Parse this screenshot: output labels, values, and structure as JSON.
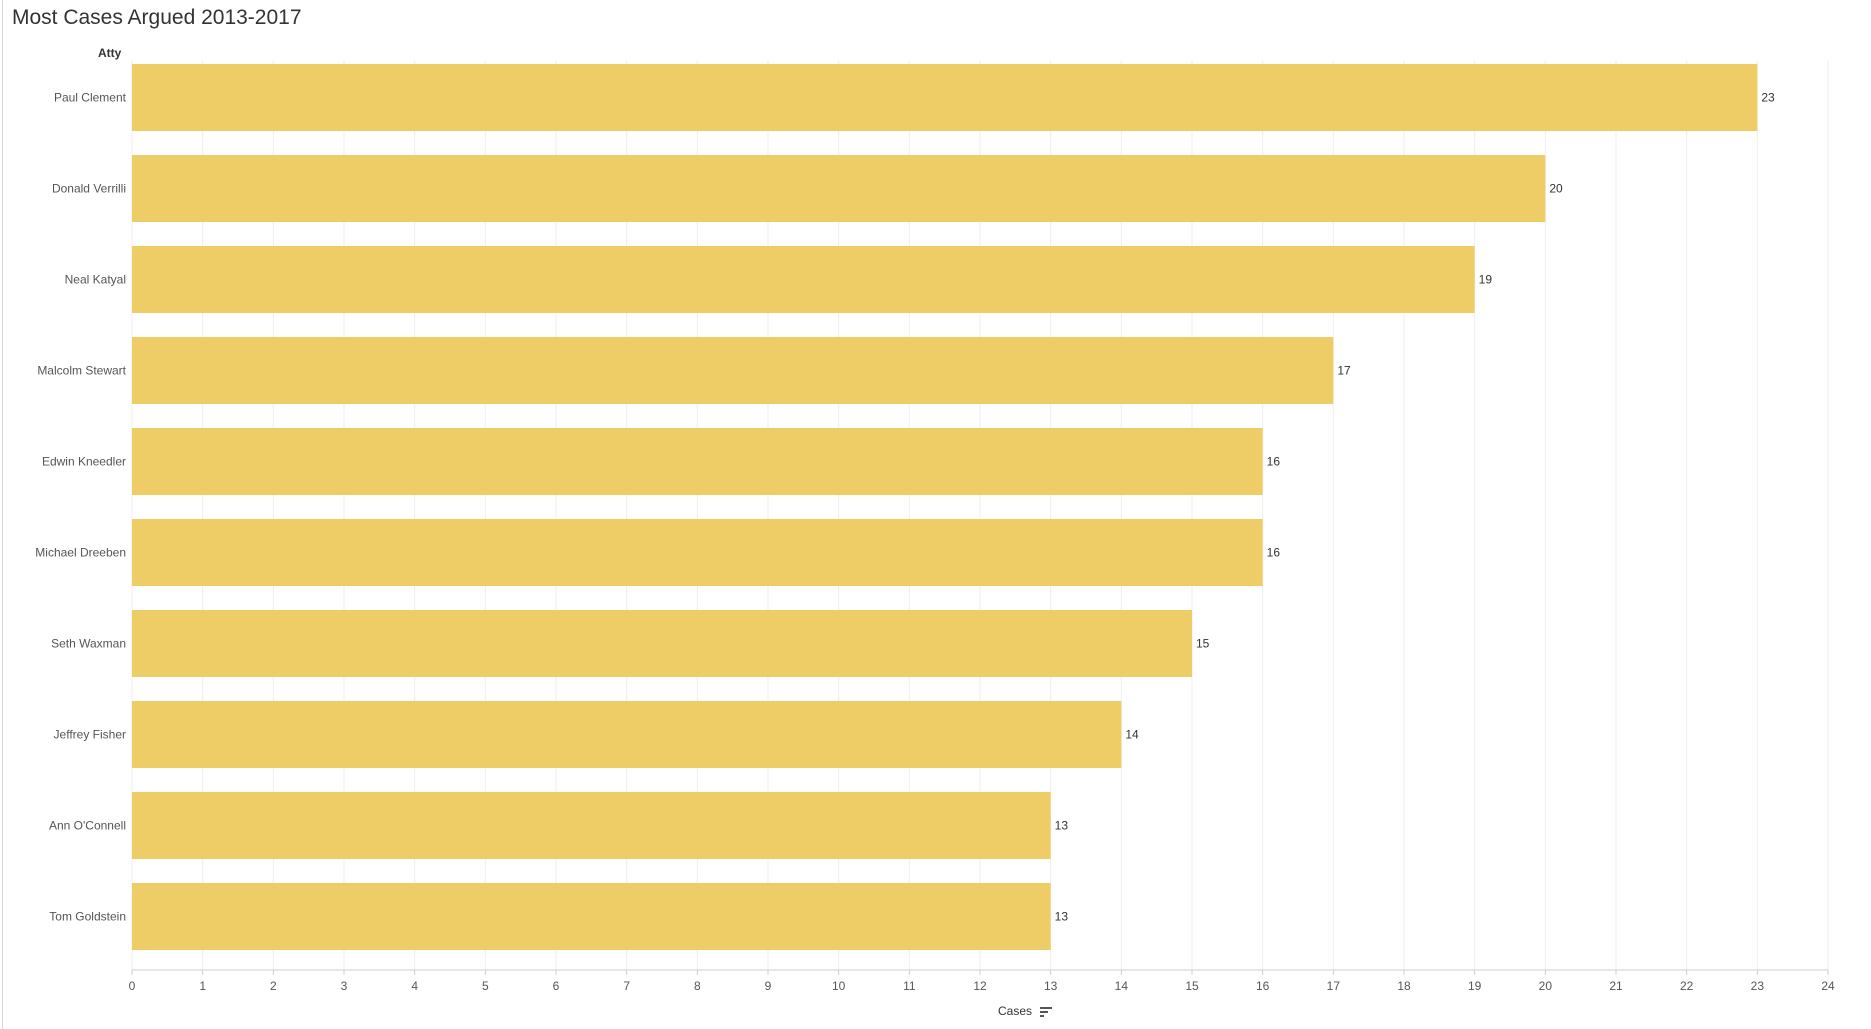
{
  "chart_data": {
    "type": "bar",
    "orientation": "horizontal",
    "title": "Most Cases Argued 2013-2017",
    "ylabel": "Atty",
    "xlabel": "Cases",
    "categories": [
      "Paul Clement",
      "Donald Verrilli",
      "Neal Katyal",
      "Malcolm Stewart",
      "Edwin Kneedler",
      "Michael Dreeben",
      "Seth Waxman",
      "Jeffrey Fisher",
      "Ann O'Connell",
      "Tom Goldstein"
    ],
    "values": [
      23,
      20,
      19,
      17,
      16,
      16,
      15,
      14,
      13,
      13
    ],
    "xlim": [
      0,
      24
    ],
    "xticks": [
      0,
      1,
      2,
      3,
      4,
      5,
      6,
      7,
      8,
      9,
      10,
      11,
      12,
      13,
      14,
      15,
      16,
      17,
      18,
      19,
      20,
      21,
      22,
      23,
      24
    ],
    "bar_color": "#EFCD66",
    "grid": true,
    "data_labels": true
  },
  "x_sort_icon": "sort-descending-icon"
}
